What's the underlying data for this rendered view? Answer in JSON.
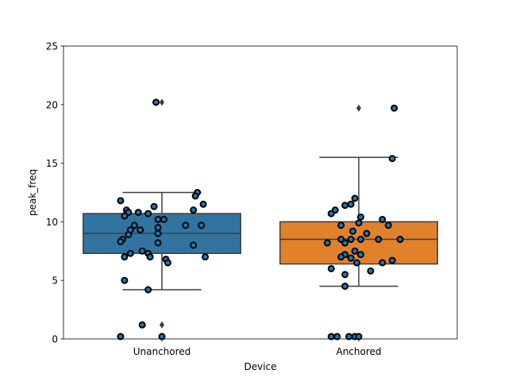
{
  "chart_data": {
    "type": "box",
    "xlabel": "Device",
    "ylabel": "peak_freq",
    "ylim": [
      0,
      25
    ],
    "yticks": [
      0,
      5,
      10,
      15,
      20,
      25
    ],
    "categories": [
      "Unanchored",
      "Anchored"
    ],
    "colors": [
      "#3274a1",
      "#e1812c"
    ],
    "point_color": "#1f77b4",
    "boxes": [
      {
        "category": "Unanchored",
        "q1": 7.3,
        "median": 9.0,
        "q3": 10.7,
        "whisker_low": 4.2,
        "whisker_high": 12.5,
        "outliers": [
          20.2,
          1.2
        ]
      },
      {
        "category": "Anchored",
        "q1": 6.4,
        "median": 8.5,
        "q3": 10.0,
        "whisker_low": 4.5,
        "whisker_high": 15.5,
        "outliers": [
          19.7
        ]
      }
    ],
    "points": [
      [
        [
          -0.03,
          20.2
        ],
        [
          -0.21,
          11.8
        ],
        [
          -0.18,
          11.0
        ],
        [
          -0.04,
          11.3
        ],
        [
          0.18,
          12.5
        ],
        [
          0.17,
          12.2
        ],
        [
          0.21,
          11.5
        ],
        [
          0.16,
          11.0
        ],
        [
          -0.17,
          10.8
        ],
        [
          -0.12,
          10.8
        ],
        [
          -0.07,
          10.7
        ],
        [
          -0.19,
          10.5
        ],
        [
          -0.02,
          10.2
        ],
        [
          0.01,
          10.2
        ],
        [
          -0.14,
          9.7
        ],
        [
          0.12,
          9.7
        ],
        [
          0.2,
          9.7
        ],
        [
          -0.16,
          9.3
        ],
        [
          -0.11,
          9.3
        ],
        [
          -0.02,
          9.5
        ],
        [
          -0.17,
          8.9
        ],
        [
          -0.02,
          9.0
        ],
        [
          -0.2,
          8.5
        ],
        [
          -0.21,
          8.3
        ],
        [
          -0.02,
          8.2
        ],
        [
          0.16,
          8.0
        ],
        [
          -0.1,
          7.5
        ],
        [
          -0.16,
          7.3
        ],
        [
          -0.07,
          7.3
        ],
        [
          -0.19,
          7.0
        ],
        [
          -0.06,
          7.0
        ],
        [
          0.02,
          6.8
        ],
        [
          0.22,
          7.0
        ],
        [
          0.03,
          6.5
        ],
        [
          -0.19,
          5.0
        ],
        [
          -0.07,
          4.2
        ],
        [
          -0.1,
          1.2
        ],
        [
          -0.21,
          0.2
        ],
        [
          0.0,
          0.2
        ]
      ],
      [
        [
          0.18,
          19.7
        ],
        [
          0.17,
          15.4
        ],
        [
          -0.02,
          12.0
        ],
        [
          -0.04,
          11.5
        ],
        [
          -0.07,
          11.4
        ],
        [
          -0.12,
          11.0
        ],
        [
          -0.14,
          10.7
        ],
        [
          0.01,
          10.4
        ],
        [
          0.12,
          10.2
        ],
        [
          0.0,
          9.9
        ],
        [
          0.15,
          9.7
        ],
        [
          -0.09,
          9.7
        ],
        [
          -0.03,
          9.2
        ],
        [
          0.04,
          9.0
        ],
        [
          -0.09,
          8.5
        ],
        [
          -0.04,
          8.5
        ],
        [
          0.01,
          8.5
        ],
        [
          0.1,
          8.5
        ],
        [
          0.21,
          8.5
        ],
        [
          -0.07,
          8.2
        ],
        [
          -0.16,
          8.2
        ],
        [
          -0.02,
          7.5
        ],
        [
          -0.07,
          7.2
        ],
        [
          0.01,
          7.2
        ],
        [
          -0.04,
          6.9
        ],
        [
          -0.09,
          7.0
        ],
        [
          0.17,
          6.7
        ],
        [
          0.12,
          6.5
        ],
        [
          -0.01,
          6.5
        ],
        [
          -0.14,
          6.0
        ],
        [
          0.06,
          5.8
        ],
        [
          -0.07,
          5.5
        ],
        [
          -0.07,
          4.5
        ],
        [
          -0.14,
          0.2
        ],
        [
          -0.11,
          0.2
        ],
        [
          -0.05,
          0.2
        ],
        [
          -0.02,
          0.2
        ],
        [
          0.0,
          0.2
        ]
      ]
    ]
  }
}
